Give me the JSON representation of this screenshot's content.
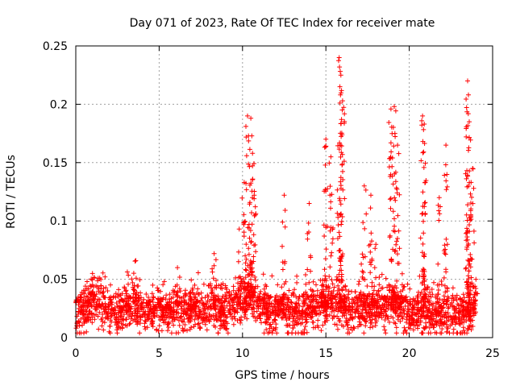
{
  "chart_data": {
    "type": "scatter",
    "title": "Day 071 of 2023, Rate Of TEC Index for receiver mate",
    "xlabel": "GPS time / hours",
    "ylabel": "ROTI / TECUs",
    "xlim": [
      0,
      25
    ],
    "ylim": [
      0,
      0.25
    ],
    "xticks": [
      "0",
      "5",
      "10",
      "15",
      "20",
      "25"
    ],
    "yticks": [
      "0",
      "0.05",
      "0.1",
      "0.15",
      "0.2",
      "0.25"
    ],
    "grid": true,
    "marker": "+",
    "color": "#ff0000",
    "baseline": [
      [
        0.0,
        0.024
      ],
      [
        0.5,
        0.026
      ],
      [
        1.0,
        0.032
      ],
      [
        1.5,
        0.028
      ],
      [
        2.0,
        0.024
      ],
      [
        2.5,
        0.022
      ],
      [
        3.0,
        0.026
      ],
      [
        3.5,
        0.03
      ],
      [
        4.0,
        0.024
      ],
      [
        4.5,
        0.022
      ],
      [
        5.0,
        0.025
      ],
      [
        5.5,
        0.024
      ],
      [
        6.0,
        0.026
      ],
      [
        6.5,
        0.024
      ],
      [
        7.0,
        0.025
      ],
      [
        7.5,
        0.025
      ],
      [
        8.0,
        0.027
      ],
      [
        8.5,
        0.026
      ],
      [
        9.0,
        0.024
      ],
      [
        9.5,
        0.027
      ],
      [
        10.0,
        0.03
      ],
      [
        10.5,
        0.034
      ],
      [
        11.0,
        0.03
      ],
      [
        11.5,
        0.024
      ],
      [
        12.0,
        0.023
      ],
      [
        12.5,
        0.026
      ],
      [
        13.0,
        0.022
      ],
      [
        13.5,
        0.021
      ],
      [
        14.0,
        0.024
      ],
      [
        14.5,
        0.026
      ],
      [
        15.0,
        0.028
      ],
      [
        15.5,
        0.03
      ],
      [
        16.0,
        0.026
      ],
      [
        16.5,
        0.022
      ],
      [
        17.0,
        0.023
      ],
      [
        17.5,
        0.024
      ],
      [
        18.0,
        0.026
      ],
      [
        18.5,
        0.026
      ],
      [
        19.0,
        0.027
      ],
      [
        19.5,
        0.025
      ],
      [
        20.0,
        0.022
      ],
      [
        20.5,
        0.021
      ],
      [
        21.0,
        0.023
      ],
      [
        21.5,
        0.022
      ],
      [
        22.0,
        0.021
      ],
      [
        22.5,
        0.021
      ],
      [
        23.0,
        0.022
      ],
      [
        23.5,
        0.022
      ],
      [
        24.0,
        0.023
      ]
    ],
    "spikes": [
      {
        "x": 1.0,
        "y": 0.055
      },
      {
        "x": 3.6,
        "y": 0.066
      },
      {
        "x": 6.1,
        "y": 0.06
      },
      {
        "x": 8.3,
        "y": 0.072
      },
      {
        "x": 9.8,
        "y": 0.093
      },
      {
        "x": 10.1,
        "y": 0.133
      },
      {
        "x": 10.3,
        "y": 0.19
      },
      {
        "x": 10.5,
        "y": 0.188
      },
      {
        "x": 10.6,
        "y": 0.158
      },
      {
        "x": 10.7,
        "y": 0.122
      },
      {
        "x": 12.5,
        "y": 0.122
      },
      {
        "x": 14.0,
        "y": 0.115
      },
      {
        "x": 15.0,
        "y": 0.17
      },
      {
        "x": 15.3,
        "y": 0.155
      },
      {
        "x": 15.8,
        "y": 0.24
      },
      {
        "x": 15.9,
        "y": 0.225
      },
      {
        "x": 16.0,
        "y": 0.203
      },
      {
        "x": 17.3,
        "y": 0.13
      },
      {
        "x": 17.7,
        "y": 0.122
      },
      {
        "x": 18.0,
        "y": 0.08
      },
      {
        "x": 18.9,
        "y": 0.196
      },
      {
        "x": 19.1,
        "y": 0.198
      },
      {
        "x": 19.3,
        "y": 0.165
      },
      {
        "x": 20.8,
        "y": 0.19
      },
      {
        "x": 20.9,
        "y": 0.183
      },
      {
        "x": 21.8,
        "y": 0.12
      },
      {
        "x": 22.2,
        "y": 0.165
      },
      {
        "x": 23.5,
        "y": 0.22
      },
      {
        "x": 23.55,
        "y": 0.208
      },
      {
        "x": 23.6,
        "y": 0.185
      },
      {
        "x": 23.8,
        "y": 0.145
      },
      {
        "x": 24.0,
        "y": 0.05
      }
    ]
  }
}
